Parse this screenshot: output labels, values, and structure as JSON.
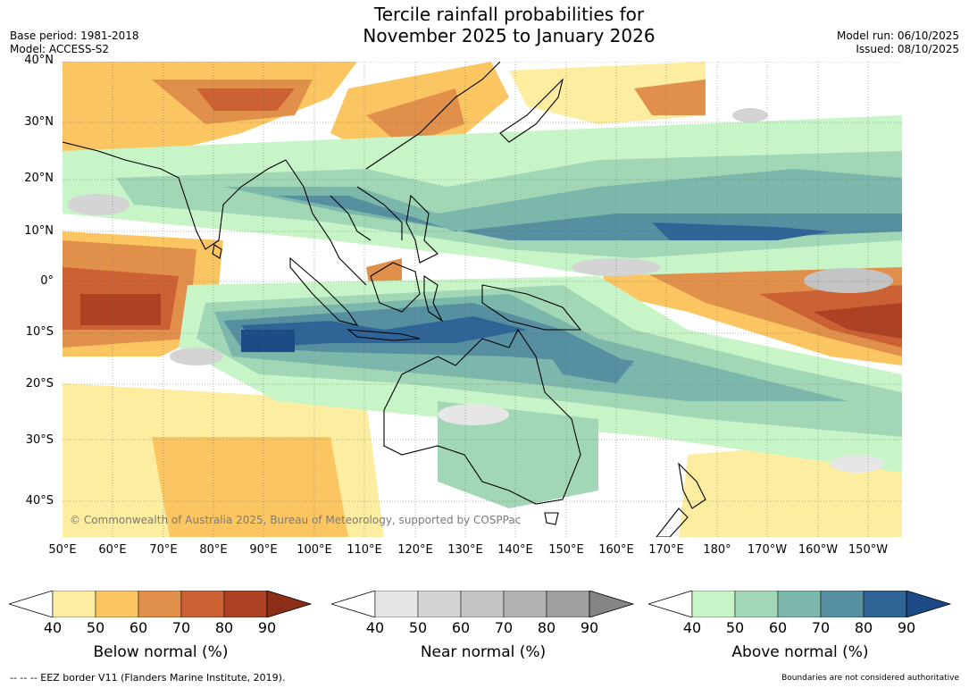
{
  "header": {
    "title_line1": "Tercile rainfall probabilities for",
    "title_line2": "November 2025 to January 2026",
    "base_period": "Base period: 1981-2018",
    "model": "Model: ACCESS-S2",
    "model_run": "Model run: 06/10/2025",
    "issued": "Issued: 08/10/2025"
  },
  "map": {
    "copyright": "© Commonwealth of Australia 2025, Bureau of Meteorology, supported by COSPPac",
    "lat_labels": [
      "40°N",
      "30°N",
      "20°N",
      "10°N",
      "0°",
      "10°S",
      "20°S",
      "30°S",
      "40°S"
    ],
    "lon_labels": [
      "50°E",
      "60°E",
      "70°E",
      "80°E",
      "90°E",
      "100°E",
      "110°E",
      "120°E",
      "130°E",
      "140°E",
      "150°E",
      "160°E",
      "170°E",
      "180°",
      "170°W",
      "160°W",
      "150°W"
    ]
  },
  "colorbars": [
    {
      "label": "Below normal (%)",
      "ticks": [
        "40",
        "50",
        "60",
        "70",
        "80",
        "90"
      ],
      "colors": [
        "#fdeda0",
        "#fbc661",
        "#e0904a",
        "#cc6133",
        "#ad4124",
        "#8c2d18"
      ]
    },
    {
      "label": "Near normal (%)",
      "ticks": [
        "40",
        "50",
        "60",
        "70",
        "80",
        "90"
      ],
      "colors": [
        "#e6e6e6",
        "#d4d4d4",
        "#c4c4c4",
        "#b2b2b2",
        "#a0a0a0",
        "#858585"
      ]
    },
    {
      "label": "Above normal (%)",
      "ticks": [
        "40",
        "50",
        "60",
        "70",
        "80",
        "90"
      ],
      "colors": [
        "#c8f5c8",
        "#a2d7b5",
        "#7cb7ab",
        "#568f9f",
        "#2f6497",
        "#1b4a86"
      ]
    }
  ],
  "footer": {
    "eez_note": "--  --  -- EEZ border V11 (Flanders Marine Institute, 2019).",
    "disclaimer": "Boundaries are not considered authoritative"
  }
}
